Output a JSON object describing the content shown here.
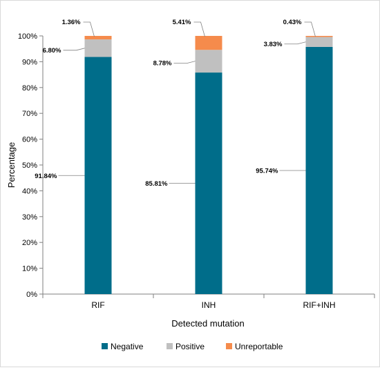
{
  "chart_data": {
    "type": "bar",
    "stacked": true,
    "categories": [
      "RIF",
      "INH",
      "RIF+INH"
    ],
    "series": [
      {
        "name": "Negative",
        "color": "#006d8a",
        "values": [
          91.84,
          85.81,
          95.74
        ],
        "labels": [
          "91.84%",
          "85.81%",
          "95.74%"
        ]
      },
      {
        "name": "Positive",
        "color": "#c0c0c0",
        "values": [
          6.8,
          8.78,
          3.83
        ],
        "labels": [
          "6.80%",
          "8.78%",
          "3.83%"
        ]
      },
      {
        "name": "Unreportable",
        "color": "#f58b4c",
        "values": [
          1.36,
          5.41,
          0.43
        ],
        "labels": [
          "1.36%",
          "5.41%",
          "0.43%"
        ]
      }
    ],
    "ylim": [
      0,
      100
    ],
    "yticks": [
      0,
      10,
      20,
      30,
      40,
      50,
      60,
      70,
      80,
      90,
      100
    ],
    "ytick_labels": [
      "0%",
      "10%",
      "20%",
      "30%",
      "40%",
      "50%",
      "60%",
      "70%",
      "80%",
      "90%",
      "100%"
    ],
    "xlabel": "Detected mutation",
    "ylabel": "Percentage",
    "grid": false,
    "legend_position": "bottom"
  }
}
